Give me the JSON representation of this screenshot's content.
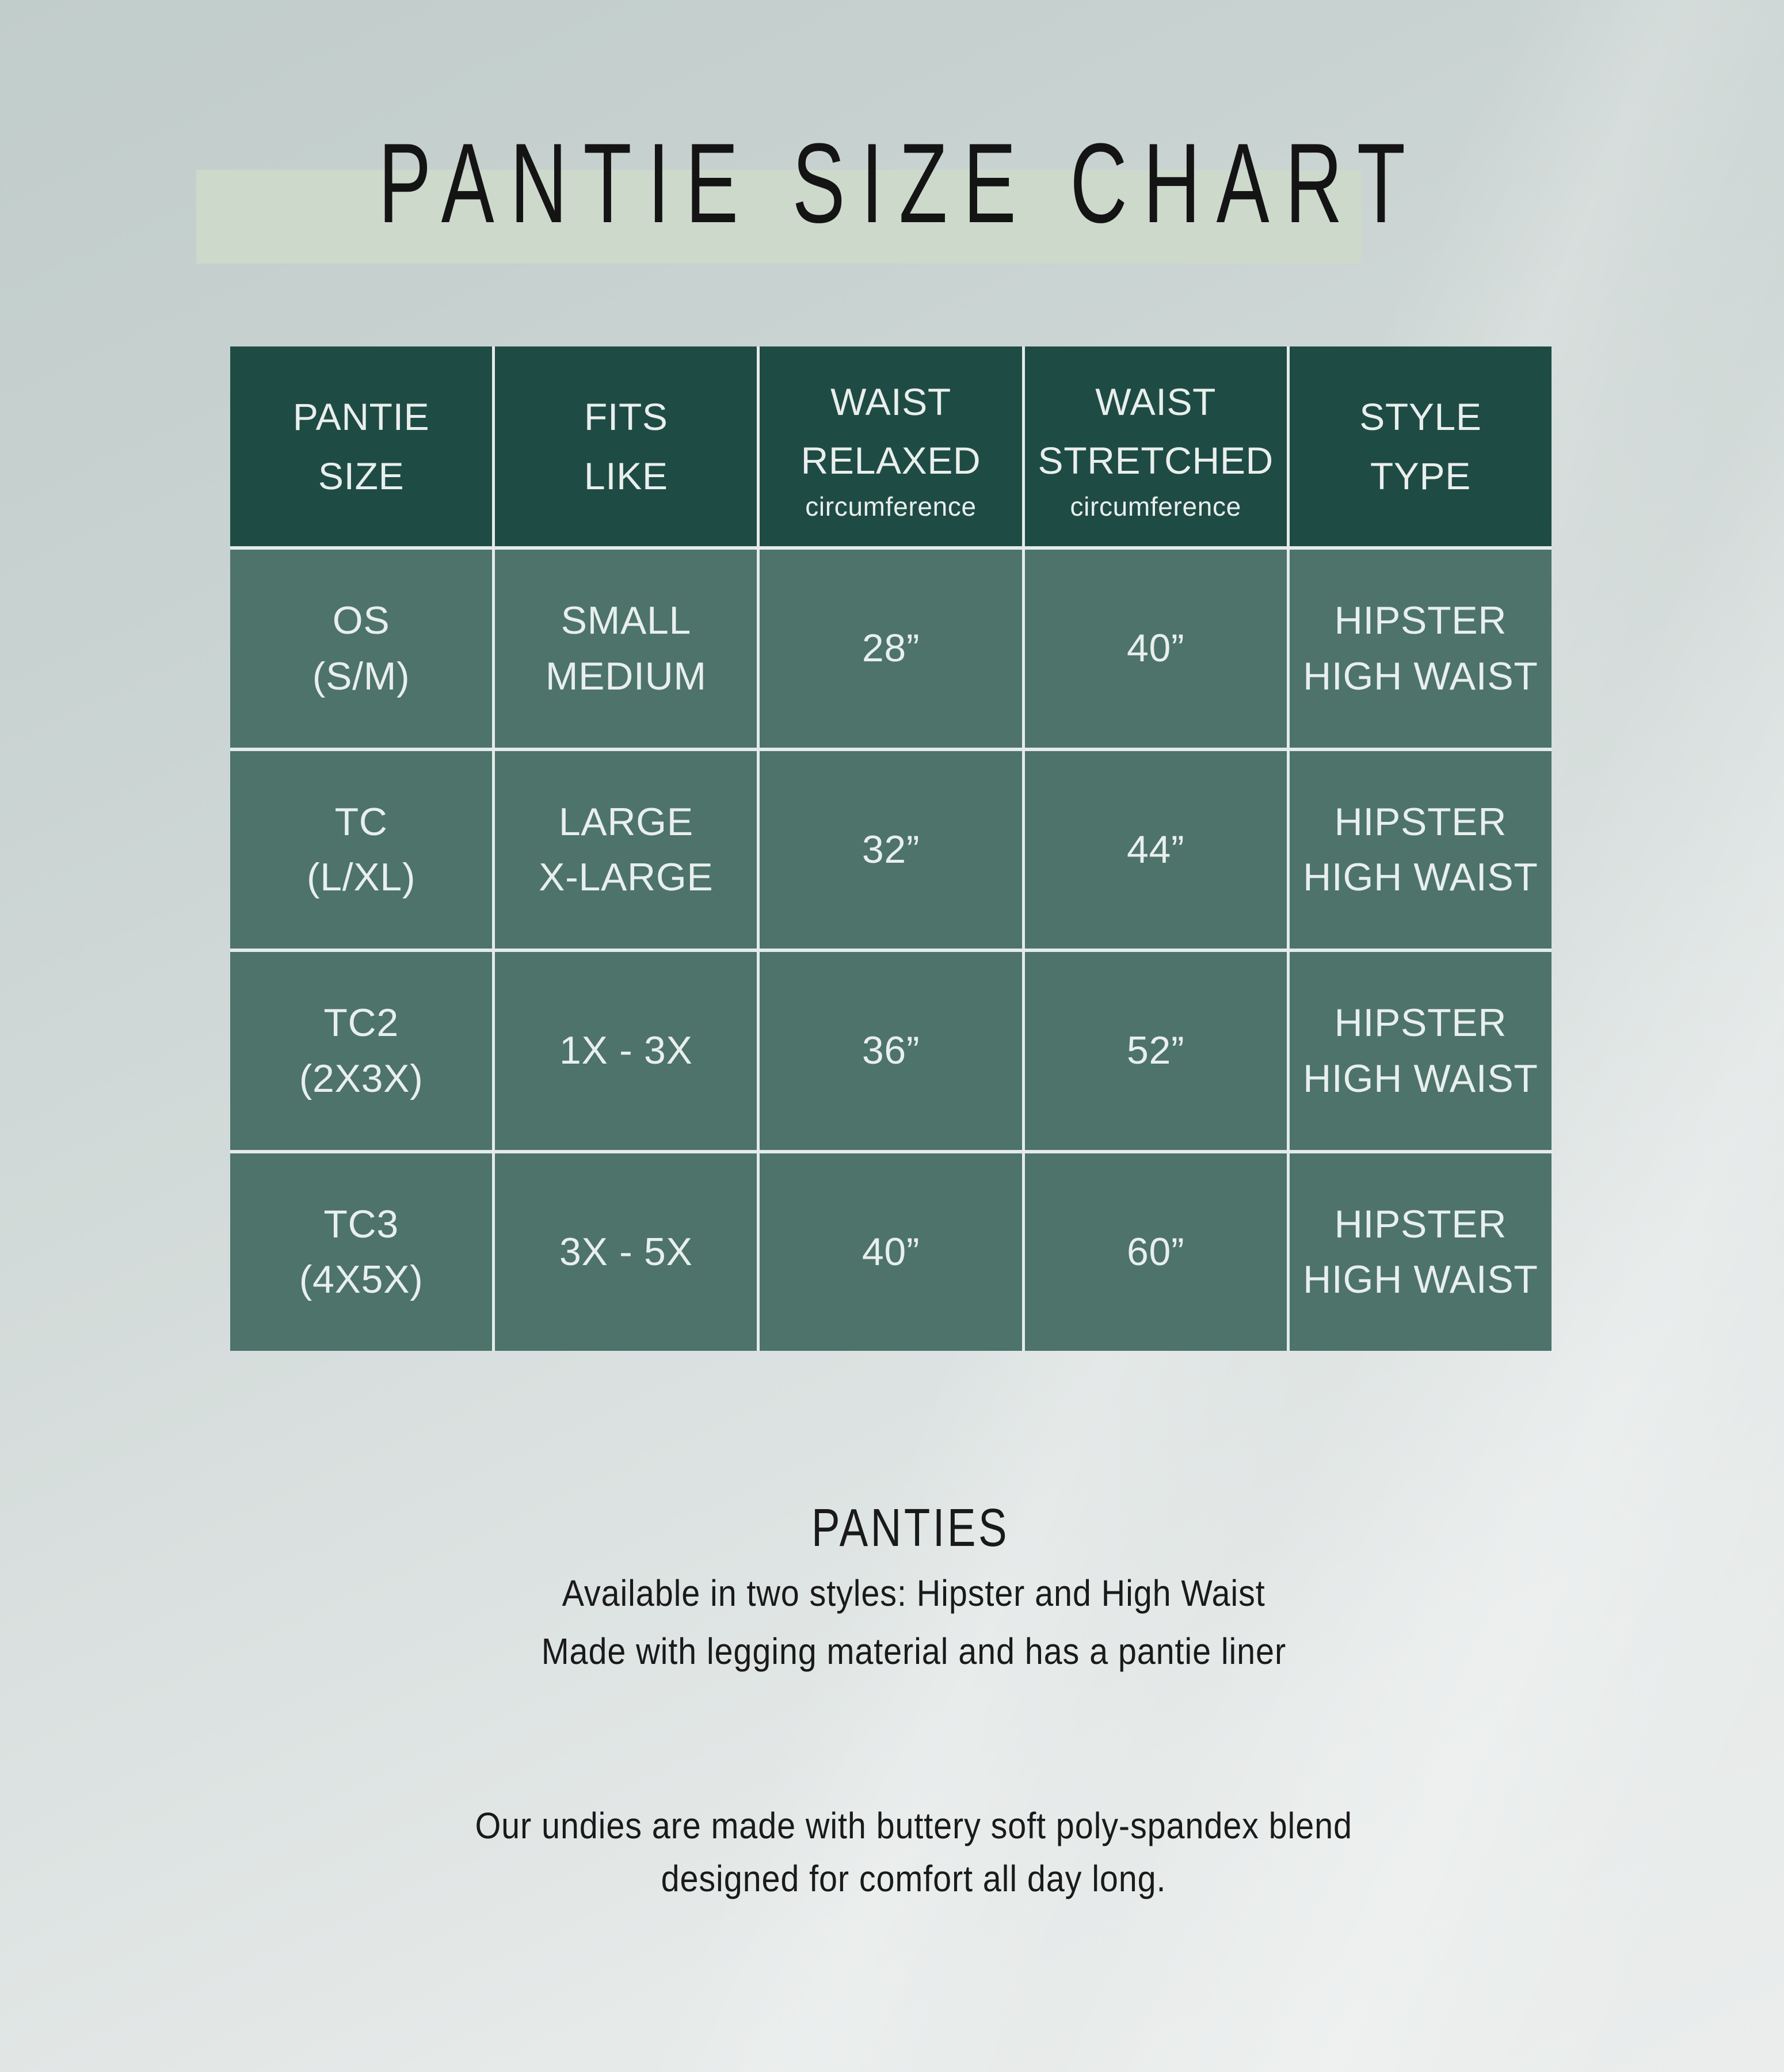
{
  "title": "PANTIE SIZE CHART",
  "table": {
    "columns": [
      {
        "line1": "PANTIE",
        "line2": "SIZE",
        "sub": ""
      },
      {
        "line1": "FITS",
        "line2": "LIKE",
        "sub": ""
      },
      {
        "line1": "WAIST",
        "line2": "RELAXED",
        "sub": "circumference"
      },
      {
        "line1": "WAIST",
        "line2": "STRETCHED",
        "sub": "circumference"
      },
      {
        "line1": "STYLE",
        "line2": "TYPE",
        "sub": ""
      }
    ],
    "rows": [
      {
        "size1": "OS",
        "size2": "(S/M)",
        "fits1": "SMALL",
        "fits2": "MEDIUM",
        "relaxed": "28”",
        "stretched": "40”",
        "style1": "HIPSTER",
        "style2": "HIGH WAIST"
      },
      {
        "size1": "TC",
        "size2": "(L/XL)",
        "fits1": "LARGE",
        "fits2": "X-LARGE",
        "relaxed": "32”",
        "stretched": "44”",
        "style1": "HIPSTER",
        "style2": "HIGH WAIST"
      },
      {
        "size1": "TC2",
        "size2": "(2X3X)",
        "fits1": "1X - 3X",
        "fits2": "",
        "relaxed": "36”",
        "stretched": "52”",
        "style1": "HIPSTER",
        "style2": "HIGH WAIST"
      },
      {
        "size1": "TC3",
        "size2": "(4X5X)",
        "fits1": "3X - 5X",
        "fits2": "",
        "relaxed": "40”",
        "stretched": "60”",
        "style1": "HIPSTER",
        "style2": "HIGH WAIST"
      }
    ]
  },
  "footer": {
    "heading": "PANTIES",
    "line1": "Available in two styles: Hipster and High Waist",
    "line2": "Made with legging material and has a pantie liner",
    "para_line1": "Our undies are made with buttery soft poly-spandex blend",
    "para_line2": "designed for comfort all day long."
  },
  "colors": {
    "header_green": "#1f4b45",
    "cell_green": "#4d736b",
    "separator": "#e4ebe9",
    "title_band": "#ccd9cb",
    "cell_text": "#e8efec",
    "dark_text": "#141414",
    "background_top": "#c1cdcb",
    "background_bottom": "#eaedec"
  }
}
